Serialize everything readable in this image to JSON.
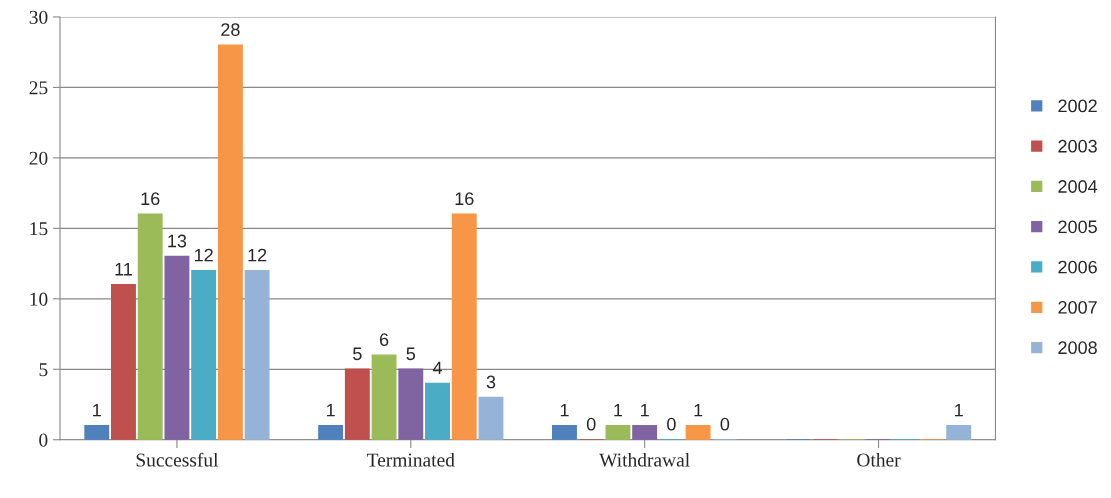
{
  "chart_data": {
    "type": "bar",
    "categories": [
      "Successful",
      "Terminated",
      "Withdrawal",
      "Other"
    ],
    "series": [
      {
        "name": "2002",
        "color": "#4f81bd",
        "values": [
          1,
          1,
          1,
          0
        ],
        "value_labels": [
          "1",
          "1",
          "1",
          null
        ]
      },
      {
        "name": "2003",
        "color": "#c0504d",
        "values": [
          11,
          5,
          0,
          0
        ],
        "value_labels": [
          "11",
          "5",
          "0",
          null
        ]
      },
      {
        "name": "2004",
        "color": "#9bbb59",
        "values": [
          16,
          6,
          1,
          0
        ],
        "value_labels": [
          "16",
          "6",
          "1",
          null
        ]
      },
      {
        "name": "2005",
        "color": "#8064a2",
        "values": [
          13,
          5,
          1,
          0
        ],
        "value_labels": [
          "13",
          "5",
          "1",
          null
        ]
      },
      {
        "name": "2006",
        "color": "#4bacc6",
        "values": [
          12,
          4,
          0,
          0
        ],
        "value_labels": [
          "12",
          "4",
          "0",
          null
        ]
      },
      {
        "name": "2007",
        "color": "#f79646",
        "values": [
          28,
          16,
          1,
          0
        ],
        "value_labels": [
          "28",
          "16",
          "1",
          null
        ]
      },
      {
        "name": "2008",
        "color": "#95b3d7",
        "values": [
          12,
          3,
          0,
          1
        ],
        "value_labels": [
          "12",
          "3",
          "0",
          "1"
        ]
      }
    ],
    "ylim": [
      0,
      30
    ],
    "yticks": [
      0,
      5,
      10,
      15,
      20,
      25,
      30
    ],
    "grid": "y",
    "legend": "right"
  }
}
